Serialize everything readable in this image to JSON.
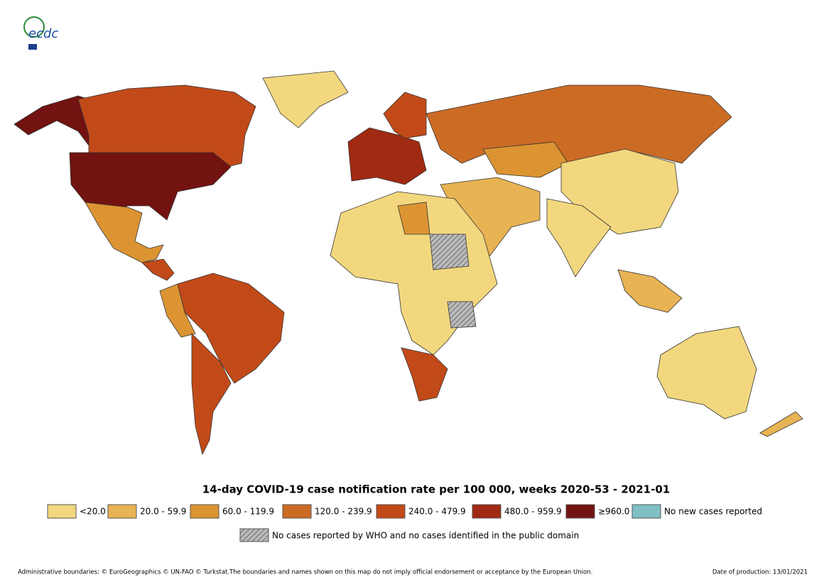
{
  "logo": {
    "text": "ecdc"
  },
  "title": "14-day COVID-19 case notification rate per 100 000, weeks 2020-53 - 2021-01",
  "legend": {
    "items": [
      {
        "label": "<20.0",
        "color": "#f2d77e"
      },
      {
        "label": "20.0 - 59.9",
        "color": "#e8b352"
      },
      {
        "label": "60.0 - 119.9",
        "color": "#dc9432"
      },
      {
        "label": "120.0 - 239.9",
        "color": "#cc6b24"
      },
      {
        "label": "240.0 - 479.9",
        "color": "#c24a18"
      },
      {
        "label": "480.0 - 959.9",
        "color": "#a02a12"
      },
      {
        "label": "≥960.0",
        "color": "#731311"
      },
      {
        "label": "No new cases reported",
        "color": "#7fbfc4"
      }
    ],
    "no_data_label": "No cases reported by WHO and no cases identified in the public domain"
  },
  "footer": {
    "left": "Administrative boundaries: © EuroGeographics © UN-FAO © Turkstat.The boundaries and names shown on this map do not imply official endorsement or acceptance by the European Union.",
    "right": "Date of production: 13/01/2021"
  }
}
